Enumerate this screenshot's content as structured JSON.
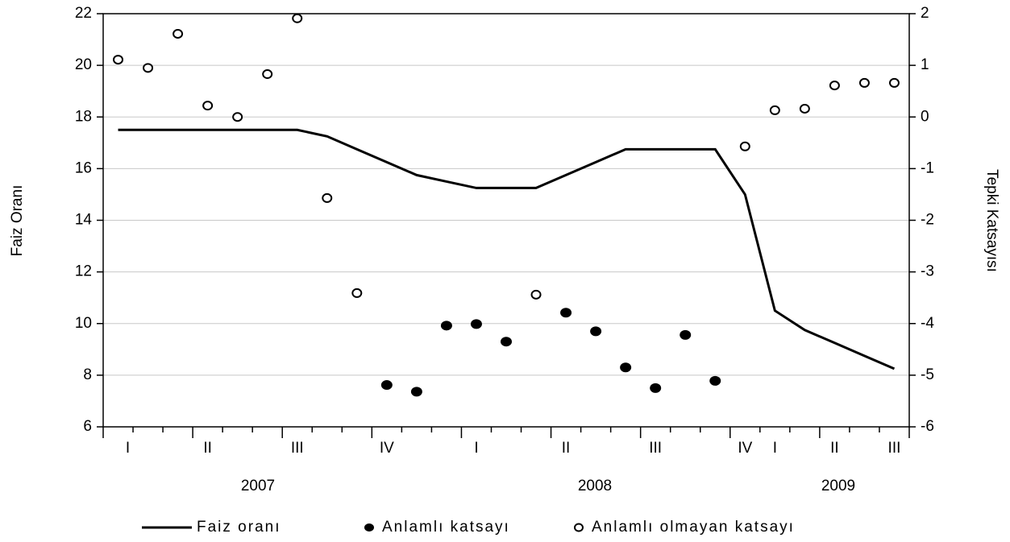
{
  "chart_data": {
    "type": "line",
    "ylabel": "Faiz Oranı",
    "y2label": "Tepki Katsayısı",
    "categories": [
      "I",
      null,
      null,
      "II",
      null,
      null,
      "III",
      null,
      null,
      "IV",
      null,
      null,
      "I",
      null,
      null,
      "II",
      null,
      null,
      "III",
      null,
      null,
      "IV",
      "I",
      null,
      "II",
      null,
      "III"
    ],
    "years": [
      "2007",
      "2008",
      "2009"
    ],
    "ylim": [
      6,
      22
    ],
    "yticks": [
      6,
      8,
      10,
      12,
      14,
      16,
      18,
      20,
      22
    ],
    "y2lim": [
      -6,
      2
    ],
    "y2ticks": [
      -6,
      -5,
      -4,
      -3,
      -2,
      -1,
      0,
      1,
      2
    ],
    "grid": true,
    "legend": "bottom",
    "series": [
      {
        "name": "Faiz oranı",
        "color": "#000000",
        "style": "line",
        "values": [
          17.5,
          17.5,
          17.5,
          17.5,
          17.5,
          17.5,
          17.5,
          17.25,
          16.75,
          16.25,
          15.75,
          15.5,
          15.25,
          15.25,
          15.25,
          15.75,
          16.25,
          16.75,
          16.75,
          16.75,
          16.75,
          15.0,
          10.5,
          9.75,
          9.25,
          8.75,
          8.25
        ]
      },
      {
        "name": "Anlamlı katsayı",
        "color": "#000000",
        "style": "filled",
        "axis": "y2",
        "values": [
          null,
          null,
          null,
          null,
          null,
          null,
          null,
          null,
          null,
          -5.19,
          -5.32,
          -4.04,
          -4.01,
          -4.35,
          null,
          -3.79,
          -4.15,
          -4.85,
          -5.25,
          -4.22,
          -5.11,
          null,
          null,
          null,
          null,
          null,
          null
        ]
      },
      {
        "name": "Anlamlı olmayan katsayı",
        "color": "#000000",
        "style": "open",
        "axis": "y2",
        "values": [
          1.11,
          0.95,
          1.61,
          0.22,
          0.0,
          0.83,
          1.91,
          -1.57,
          -3.41,
          null,
          null,
          null,
          null,
          null,
          -3.44,
          null,
          null,
          null,
          null,
          null,
          null,
          -0.57,
          0.13,
          0.16,
          0.61,
          0.66,
          0.66
        ]
      }
    ]
  }
}
